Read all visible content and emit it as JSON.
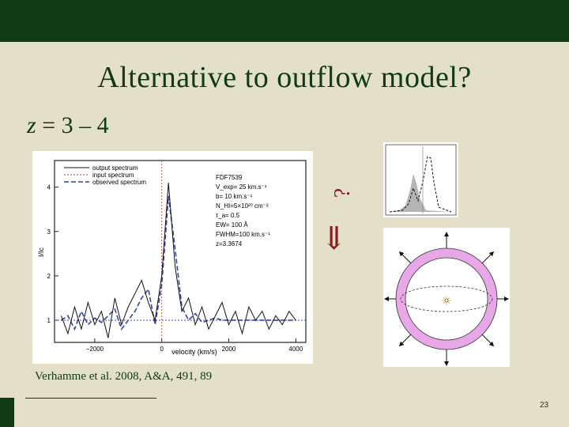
{
  "slide": {
    "title": "Alternative to outflow model?",
    "subtitle_var": "z",
    "subtitle_rest": " = 3 – 4",
    "question_mark": "?",
    "arrow_glyph": "⇐",
    "citation": "Verhamme et al. 2008, A&A, 491, 89",
    "page_number": "23"
  },
  "colors": {
    "topbar": "#0f3a14",
    "background": "#e3dfc9",
    "accent": "#8b1a1a",
    "shell": "#e8a8e8"
  },
  "chart_data": [
    {
      "type": "line",
      "xlabel": "velocity (km/s)",
      "ylabel": "I/Ic",
      "xticks": [
        "−2000",
        "0",
        "2000",
        "4000"
      ],
      "yticks": [
        "1",
        "2",
        "3",
        "4"
      ],
      "xlim": [
        -3200,
        4300
      ],
      "ylim": [
        0.5,
        4.6
      ],
      "legend": [
        "output spectrum",
        "input spectrum",
        "observed spectrum"
      ],
      "annotations": [
        "FDF7539",
        "V_exp= 25 km.s⁻¹",
        "b= 10 km.s⁻¹",
        "N_HI=5×10²⁰ cm⁻²",
        "τ_a= 0.5",
        "EW= 100 Å",
        "FWHM=100 km.s⁻¹",
        "z=3.3674"
      ],
      "series": [
        {
          "name": "observed spectrum",
          "x": [
            -3000,
            -2800,
            -2600,
            -2400,
            -2200,
            -2000,
            -1800,
            -1600,
            -1400,
            -1200,
            -1000,
            -800,
            -600,
            -400,
            -200,
            0,
            200,
            400,
            600,
            800,
            1000,
            1200,
            1400,
            1600,
            1800,
            2000,
            2200,
            2400,
            2600,
            2800,
            3000,
            3200,
            3400,
            3600,
            3800,
            4000
          ],
          "y": [
            1.0,
            1.1,
            0.8,
            1.2,
            0.9,
            1.05,
            0.95,
            1.1,
            1.25,
            0.8,
            1.0,
            1.2,
            1.5,
            1.7,
            0.9,
            1.8,
            3.8,
            2.6,
            1.3,
            1.0,
            1.15,
            0.95,
            1.0,
            1.05,
            1.0,
            1.0,
            1.0,
            1.0,
            1.0,
            1.0,
            1.0,
            1.0,
            1.0,
            1.0,
            1.0,
            1.0
          ]
        },
        {
          "name": "output spectrum",
          "x": [
            -3000,
            -2800,
            -2600,
            -2400,
            -2200,
            -2000,
            -1800,
            -1600,
            -1400,
            -1200,
            -1000,
            -800,
            -600,
            -400,
            -200,
            0,
            200,
            400,
            600,
            800,
            1000,
            1200,
            1400,
            1600,
            1800,
            2000,
            2200,
            2400,
            2600,
            2800,
            3000,
            3200,
            3400,
            3600,
            3800,
            4000
          ],
          "y": [
            1.1,
            0.7,
            1.3,
            0.8,
            1.4,
            0.9,
            1.2,
            0.6,
            1.5,
            0.9,
            1.3,
            1.6,
            1.9,
            1.4,
            1.0,
            2.0,
            4.1,
            2.2,
            1.2,
            1.5,
            0.9,
            1.3,
            0.8,
            1.1,
            1.4,
            0.9,
            1.2,
            0.7,
            1.3,
            1.0,
            1.2,
            0.8,
            1.1,
            0.9,
            1.2,
            1.0
          ]
        }
      ]
    },
    {
      "type": "area",
      "xlabel": "",
      "ylabel": ""
    }
  ]
}
